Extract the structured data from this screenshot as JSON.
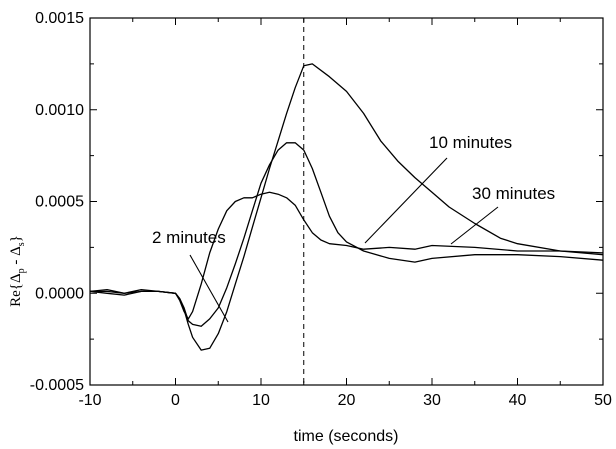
{
  "chart_data": {
    "type": "line",
    "xlabel": "time (seconds)",
    "ylabel": {
      "prefix": "Re{Δ",
      "sub1": "p",
      "mid": " - Δ",
      "sub2": "s",
      "suffix": "}"
    },
    "xlim": [
      -10,
      50
    ],
    "ylim": [
      -0.0005,
      0.0015
    ],
    "x_ticks": [
      "-10",
      "0",
      "10",
      "20",
      "30",
      "40",
      "50"
    ],
    "y_ticks": [
      "-0.0005",
      "0.0000",
      "0.0005",
      "0.0010",
      "0.0015"
    ],
    "grid": false,
    "vertical_reference_line": {
      "x": 15,
      "style": "dashed"
    },
    "series": [
      {
        "name": "2 minutes",
        "x": [
          -10,
          -8,
          -6,
          -4,
          -2,
          0,
          0.5,
          1,
          1.5,
          2,
          3,
          4,
          5,
          6,
          7,
          8,
          9,
          10,
          11,
          12,
          13,
          14,
          15,
          16,
          17,
          18,
          20,
          22,
          25,
          28,
          30,
          35,
          40,
          45,
          50
        ],
        "y": [
          1e-05,
          2e-05,
          0.0,
          2e-05,
          1e-05,
          0.0,
          -4e-05,
          -0.0001,
          -0.00014,
          -0.0001,
          5e-05,
          0.00022,
          0.00035,
          0.00045,
          0.0005,
          0.00052,
          0.00052,
          0.00054,
          0.00055,
          0.00054,
          0.00052,
          0.00048,
          0.0004,
          0.00033,
          0.00029,
          0.00027,
          0.00026,
          0.00024,
          0.00025,
          0.00024,
          0.00026,
          0.00025,
          0.00023,
          0.00023,
          0.00022
        ]
      },
      {
        "name": "10 minutes",
        "x": [
          -10,
          -8,
          -6,
          -4,
          -2,
          0,
          0.5,
          1,
          1.5,
          2,
          3,
          4,
          5,
          6,
          7,
          8,
          9,
          10,
          11,
          12,
          13,
          14,
          15,
          16,
          17,
          18,
          19,
          20,
          22,
          25,
          28,
          30,
          35,
          40,
          45,
          50
        ],
        "y": [
          1e-05,
          1e-05,
          0.0,
          1e-05,
          1e-05,
          0.0,
          -3e-05,
          -8e-05,
          -0.00015,
          -0.00017,
          -0.00018,
          -0.00014,
          -8e-05,
          3e-05,
          0.00016,
          0.0003,
          0.00045,
          0.0006,
          0.0007,
          0.00078,
          0.00082,
          0.00082,
          0.00078,
          0.00068,
          0.00055,
          0.00042,
          0.00033,
          0.00028,
          0.00023,
          0.00019,
          0.00017,
          0.00019,
          0.00021,
          0.00021,
          0.0002,
          0.00018
        ]
      },
      {
        "name": "30 minutes",
        "x": [
          -10,
          -8,
          -6,
          -4,
          -2,
          0,
          0.5,
          1,
          1.5,
          2,
          3,
          4,
          5,
          6,
          7,
          8,
          9,
          10,
          11,
          12,
          13,
          14,
          15,
          16,
          18,
          20,
          22,
          24,
          26,
          28,
          30,
          32,
          35,
          38,
          40,
          45,
          50
        ],
        "y": [
          1e-05,
          0.0,
          -1e-05,
          1e-05,
          1e-05,
          0.0,
          -3e-05,
          -9e-05,
          -0.00017,
          -0.00024,
          -0.00031,
          -0.0003,
          -0.00022,
          -0.0001,
          5e-05,
          0.0002,
          0.00036,
          0.00052,
          0.00068,
          0.00083,
          0.00098,
          0.00112,
          0.00124,
          0.00125,
          0.00118,
          0.0011,
          0.00098,
          0.00083,
          0.00072,
          0.00063,
          0.00055,
          0.00047,
          0.00038,
          0.0003,
          0.00027,
          0.00023,
          0.00021
        ]
      }
    ],
    "annotations": [
      {
        "text": "2 minutes",
        "series": "2 minutes"
      },
      {
        "text": "10 minutes",
        "series": "10 minutes"
      },
      {
        "text": "30 minutes",
        "series": "30 minutes"
      }
    ]
  }
}
